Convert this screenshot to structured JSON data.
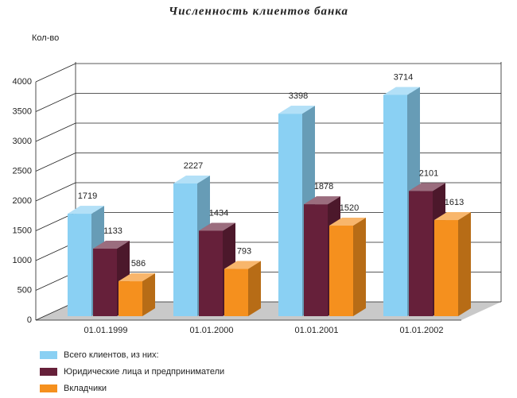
{
  "chart_data": {
    "type": "bar3d",
    "title": "Численность клиентов банка",
    "y_label": "Кол-во",
    "categories": [
      "01.01.1999",
      "01.01.2000",
      "01.01.2001",
      "01.01.2002"
    ],
    "series": [
      {
        "name": "Всего клиентов, из них:",
        "color": "#8ad0f3",
        "values": [
          1719,
          2227,
          3398,
          3714
        ]
      },
      {
        "name": "Юридические лица и предприниматели",
        "color": "#66203a",
        "values": [
          1133,
          1434,
          1878,
          2101
        ]
      },
      {
        "name": "Вкладчики",
        "color": "#f5901e",
        "values": [
          586,
          793,
          1520,
          1613
        ]
      }
    ],
    "ylim": [
      0,
      4000
    ],
    "yticks": [
      0,
      500,
      1000,
      1500,
      2000,
      2500,
      3000,
      3500,
      4000
    ],
    "grid": true
  }
}
